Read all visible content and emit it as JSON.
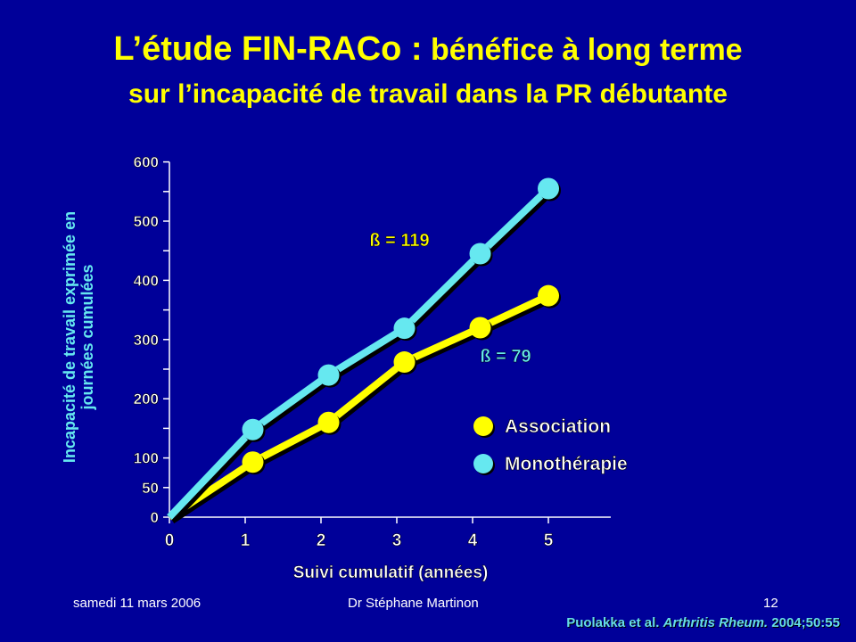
{
  "slide": {
    "title_line1_part1": "L’étude FIN-RACo :",
    "title_line1_part2": " bénéfice à long terme",
    "title_line2": "sur l’incapacité de travail dans la PR débutante",
    "footer_date": "samedi 11 mars 2006",
    "footer_author": "Dr Stéphane Martinon",
    "footer_page": "12",
    "citation_authors": "Puolakka et al. ",
    "citation_journal": "Arthritis Rheum.",
    "citation_ref": " 2004;50:55"
  },
  "colors": {
    "background": "#000099",
    "title": "#ffff00",
    "association": "#ffff00",
    "monotherapie": "#66e8f0",
    "axis": "#ffffff",
    "citation": "#66dde6"
  },
  "chart_data": {
    "type": "line",
    "title": "",
    "xlabel": "Suivi cumulatif (années)",
    "ylabel_line1": "Incapacité de travail exprimée en",
    "ylabel_line2": "journées cumulées",
    "x": [
      0,
      1,
      2,
      3,
      4,
      5
    ],
    "x_ticks": [
      "0",
      "1",
      "2",
      "3",
      "4",
      "5"
    ],
    "y_ticks": [
      0,
      50,
      100,
      200,
      300,
      400,
      500,
      600
    ],
    "y_tick_labels": [
      "0",
      "50",
      "100",
      "200",
      "300",
      "400",
      "500",
      "600"
    ],
    "ylim": [
      0,
      600
    ],
    "series": [
      {
        "name": "Association",
        "color": "#ffff00",
        "x": [
          0,
          1.1,
          2.1,
          3.1,
          4.1,
          5.0
        ],
        "values": [
          0,
          93,
          160,
          262,
          320,
          374
        ]
      },
      {
        "name": "Monothérapie",
        "color": "#66e8f0",
        "x": [
          0,
          1.1,
          2.1,
          3.1,
          4.1,
          5.0
        ],
        "values": [
          0,
          148,
          240,
          319,
          445,
          555
        ]
      }
    ],
    "annotations": [
      {
        "text": "ß = 119",
        "color": "#ffff00"
      },
      {
        "text": "ß = 79",
        "color": "#66e8f0"
      }
    ],
    "legend_position": "right-middle",
    "grid": false
  }
}
